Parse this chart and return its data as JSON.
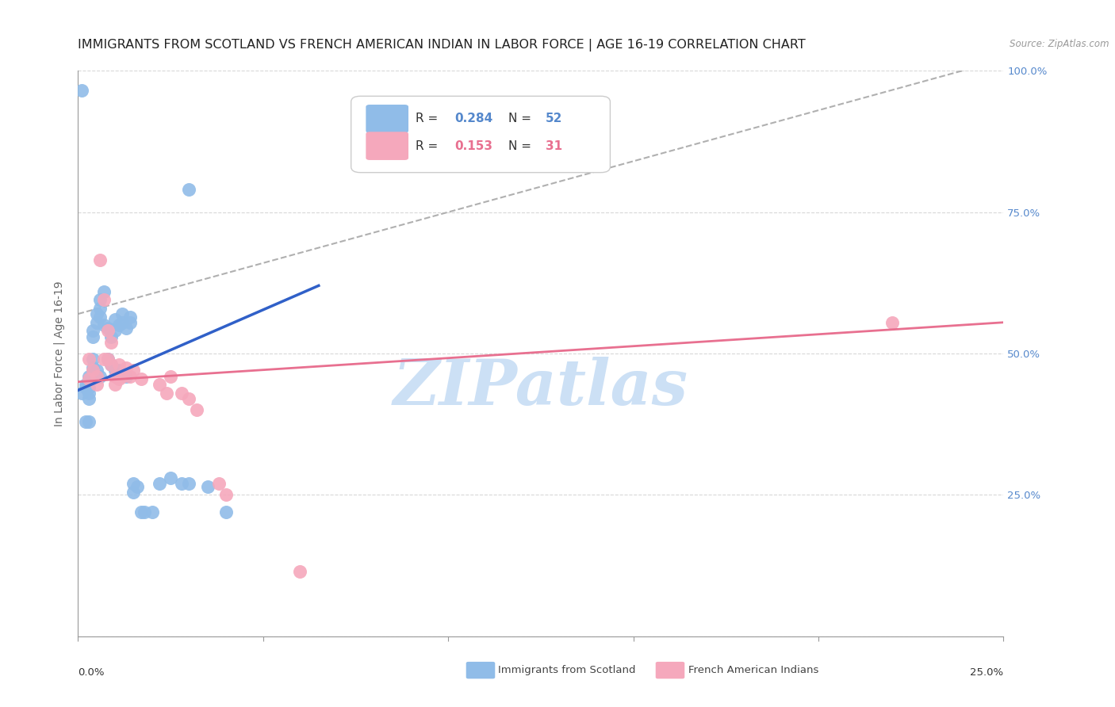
{
  "title": "IMMIGRANTS FROM SCOTLAND VS FRENCH AMERICAN INDIAN IN LABOR FORCE | AGE 16-19 CORRELATION CHART",
  "source": "Source: ZipAtlas.com",
  "ylabel": "In Labor Force | Age 16-19",
  "xlim": [
    0.0,
    0.25
  ],
  "ylim": [
    0.0,
    1.0
  ],
  "watermark": "ZIPatlas",
  "scatter_blue_x": [
    0.001,
    0.001,
    0.002,
    0.002,
    0.002,
    0.003,
    0.003,
    0.003,
    0.003,
    0.003,
    0.003,
    0.004,
    0.004,
    0.004,
    0.004,
    0.005,
    0.005,
    0.005,
    0.006,
    0.006,
    0.006,
    0.006,
    0.007,
    0.007,
    0.008,
    0.008,
    0.009,
    0.009,
    0.01,
    0.01,
    0.01,
    0.011,
    0.011,
    0.012,
    0.012,
    0.013,
    0.013,
    0.014,
    0.014,
    0.015,
    0.015,
    0.016,
    0.017,
    0.018,
    0.02,
    0.022,
    0.025,
    0.028,
    0.03,
    0.035,
    0.04,
    0.03
  ],
  "scatter_blue_y": [
    0.965,
    0.43,
    0.445,
    0.44,
    0.38,
    0.46,
    0.45,
    0.44,
    0.43,
    0.42,
    0.38,
    0.54,
    0.53,
    0.49,
    0.475,
    0.57,
    0.555,
    0.47,
    0.595,
    0.58,
    0.565,
    0.46,
    0.61,
    0.55,
    0.49,
    0.545,
    0.53,
    0.48,
    0.56,
    0.54,
    0.47,
    0.55,
    0.47,
    0.57,
    0.555,
    0.545,
    0.46,
    0.565,
    0.555,
    0.27,
    0.255,
    0.265,
    0.22,
    0.22,
    0.22,
    0.27,
    0.28,
    0.27,
    0.27,
    0.265,
    0.22,
    0.79
  ],
  "scatter_pink_x": [
    0.003,
    0.003,
    0.004,
    0.005,
    0.005,
    0.006,
    0.007,
    0.007,
    0.008,
    0.008,
    0.009,
    0.009,
    0.01,
    0.01,
    0.011,
    0.011,
    0.012,
    0.013,
    0.014,
    0.015,
    0.017,
    0.022,
    0.024,
    0.025,
    0.028,
    0.03,
    0.032,
    0.038,
    0.04,
    0.06,
    0.22
  ],
  "scatter_pink_y": [
    0.49,
    0.455,
    0.47,
    0.46,
    0.445,
    0.665,
    0.595,
    0.49,
    0.54,
    0.49,
    0.52,
    0.48,
    0.46,
    0.445,
    0.48,
    0.455,
    0.46,
    0.475,
    0.46,
    0.47,
    0.455,
    0.445,
    0.43,
    0.46,
    0.43,
    0.42,
    0.4,
    0.27,
    0.25,
    0.115,
    0.555
  ],
  "blue_line_x": [
    0.0,
    0.065
  ],
  "blue_line_y": [
    0.435,
    0.62
  ],
  "pink_line_x": [
    0.0,
    0.25
  ],
  "pink_line_y": [
    0.45,
    0.555
  ],
  "dashed_line_x": [
    0.0,
    0.25
  ],
  "dashed_line_y": [
    0.57,
    1.02
  ],
  "blue_color": "#90bce8",
  "pink_color": "#f5a8bc",
  "blue_line_color": "#3060c8",
  "pink_line_color": "#e87090",
  "dashed_color": "#b0b0b0",
  "grid_color": "#d8d8d8",
  "watermark_color": "#cce0f5",
  "right_tick_color": "#5588cc",
  "title_fontsize": 11.5,
  "ylabel_fontsize": 10,
  "tick_fontsize": 9.5,
  "legend_fontsize": 11
}
